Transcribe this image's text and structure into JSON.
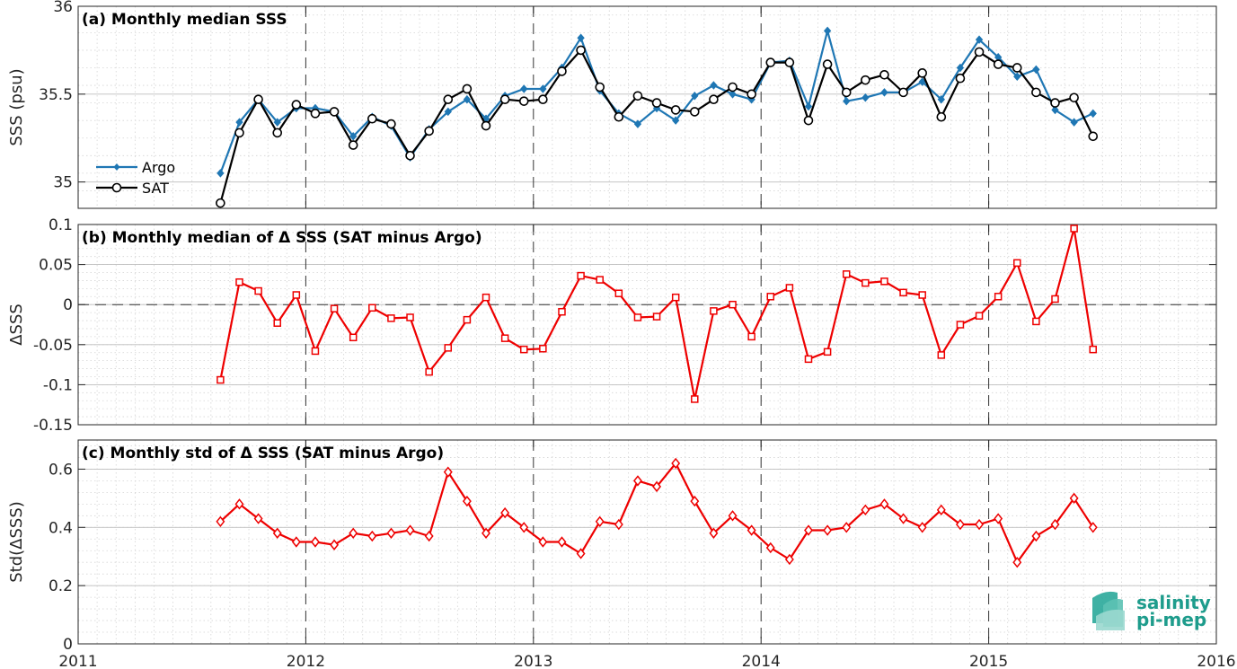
{
  "chart_data": [
    {
      "type": "line",
      "title": "(a) Monthly median SSS",
      "xlabel": "",
      "ylabel": "SSS (psu)",
      "xlim": [
        2011,
        2016
      ],
      "ylim": [
        34.85,
        36
      ],
      "yticks": [
        35,
        35.5,
        36
      ],
      "ytick_labels": [
        "35",
        "35.5",
        "36"
      ],
      "grid": true,
      "legend_position": "lower-left",
      "series": [
        {
          "name": "Argo",
          "color": "#1f77b4",
          "marker": "diamond-filled",
          "values": [
            35.05,
            35.34,
            35.47,
            35.34,
            35.42,
            35.42,
            35.4,
            35.26,
            35.37,
            35.32,
            35.14,
            35.3,
            35.4,
            35.47,
            35.36,
            35.49,
            35.53,
            35.53,
            35.65,
            35.82,
            35.52,
            35.39,
            35.33,
            35.42,
            35.35,
            35.49,
            35.55,
            35.5,
            35.47,
            35.68,
            35.69,
            35.43,
            35.86,
            35.46,
            35.48,
            35.51,
            35.51,
            35.57,
            35.47,
            35.65,
            35.81,
            35.71,
            35.6,
            35.64,
            35.41,
            35.34,
            35.39
          ]
        },
        {
          "name": "SAT",
          "color": "#000000",
          "marker": "circle-open",
          "values": [
            34.88,
            35.28,
            35.47,
            35.28,
            35.44,
            35.39,
            35.4,
            35.21,
            35.36,
            35.33,
            35.15,
            35.29,
            35.47,
            35.53,
            35.32,
            35.47,
            35.46,
            35.47,
            35.63,
            35.75,
            35.54,
            35.37,
            35.49,
            35.45,
            35.41,
            35.4,
            35.47,
            35.54,
            35.5,
            35.68,
            35.68,
            35.35,
            35.67,
            35.51,
            35.58,
            35.61,
            35.51,
            35.62,
            35.37,
            35.59,
            35.74,
            35.67,
            35.65,
            35.51,
            35.45,
            35.48,
            35.26
          ]
        }
      ]
    },
    {
      "type": "line",
      "title": "(b) Monthly median of Δ SSS (SAT minus Argo)",
      "xlabel": "",
      "ylabel": "ΔSSS",
      "xlim": [
        2011,
        2016
      ],
      "ylim": [
        -0.15,
        0.1
      ],
      "yticks": [
        -0.15,
        -0.1,
        -0.05,
        0,
        0.05,
        0.1
      ],
      "ytick_labels": [
        "-0.15",
        "-0.1",
        "-0.05",
        "0",
        "0.05",
        "0.1"
      ],
      "grid": true,
      "zero_line": "dashed",
      "series": [
        {
          "color": "#ee0000",
          "marker": "square-open",
          "values": [
            -0.094,
            0.028,
            0.017,
            -0.023,
            0.012,
            -0.058,
            -0.005,
            -0.041,
            -0.004,
            -0.017,
            -0.016,
            -0.084,
            -0.054,
            -0.019,
            0.009,
            -0.042,
            -0.056,
            -0.055,
            -0.009,
            0.036,
            0.031,
            0.014,
            -0.016,
            -0.015,
            0.009,
            -0.118,
            -0.008,
            0.0,
            -0.04,
            0.01,
            0.021,
            -0.068,
            -0.059,
            0.038,
            0.027,
            0.029,
            0.015,
            0.012,
            -0.063,
            -0.025,
            -0.014,
            0.01,
            0.052,
            -0.021,
            0.007,
            0.095,
            -0.056
          ]
        }
      ]
    },
    {
      "type": "line",
      "title": "(c) Monthly std of Δ SSS (SAT minus Argo)",
      "xlabel": "",
      "ylabel": "Std(ΔSSS)",
      "xlim": [
        2011,
        2016
      ],
      "ylim": [
        0,
        0.7
      ],
      "yticks": [
        0,
        0.2,
        0.4,
        0.6
      ],
      "ytick_labels": [
        "0",
        "0.2",
        "0.4",
        "0.6"
      ],
      "xticks": [
        2011,
        2012,
        2013,
        2014,
        2015,
        2016
      ],
      "xtick_labels": [
        "2011",
        "2012",
        "2013",
        "2014",
        "2015",
        "2016"
      ],
      "grid": true,
      "series": [
        {
          "color": "#ee0000",
          "marker": "diamond-open",
          "values": [
            0.42,
            0.48,
            0.43,
            0.38,
            0.35,
            0.35,
            0.34,
            0.38,
            0.37,
            0.38,
            0.39,
            0.37,
            0.59,
            0.49,
            0.38,
            0.45,
            0.4,
            0.35,
            0.35,
            0.31,
            0.42,
            0.41,
            0.56,
            0.54,
            0.62,
            0.49,
            0.38,
            0.44,
            0.39,
            0.33,
            0.29,
            0.39,
            0.39,
            0.4,
            0.46,
            0.48,
            0.43,
            0.4,
            0.46,
            0.41,
            0.41,
            0.43,
            0.28,
            0.37,
            0.41,
            0.5,
            0.4
          ]
        }
      ]
    }
  ],
  "x_dates": [
    "2011-08",
    "2011-09",
    "2011-10",
    "2011-11",
    "2011-12",
    "2012-01",
    "2012-02",
    "2012-03",
    "2012-04",
    "2012-05",
    "2012-06",
    "2012-07",
    "2012-08",
    "2012-09",
    "2012-10",
    "2012-11",
    "2012-12",
    "2013-01",
    "2013-02",
    "2013-03",
    "2013-04",
    "2013-05",
    "2013-06",
    "2013-07",
    "2013-08",
    "2013-09",
    "2013-10",
    "2013-11",
    "2013-12",
    "2014-01",
    "2014-02",
    "2014-03",
    "2014-04",
    "2014-05",
    "2014-06",
    "2014-07",
    "2014-08",
    "2014-09",
    "2014-10",
    "2014-11",
    "2014-12",
    "2015-01",
    "2015-02",
    "2015-03",
    "2015-04",
    "2015-05",
    "2015-06"
  ],
  "year_separators": [
    2012,
    2013,
    2014,
    2015
  ],
  "logo": {
    "line1": "salinity",
    "line2": "pi-mep",
    "color": "#1e9c8c"
  }
}
